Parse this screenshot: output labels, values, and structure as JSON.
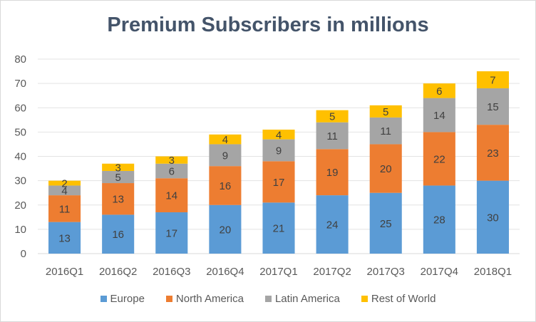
{
  "chart_data": {
    "type": "bar",
    "stacked": true,
    "title": "Premium Subscribers in millions",
    "xlabel": "",
    "ylabel": "",
    "ylim": [
      0,
      80
    ],
    "yticks": [
      0,
      10,
      20,
      30,
      40,
      50,
      60,
      70,
      80
    ],
    "grid": true,
    "legend_position": "bottom",
    "categories": [
      "2016Q1",
      "2016Q2",
      "2016Q3",
      "2016Q4",
      "2017Q1",
      "2017Q2",
      "2017Q3",
      "2017Q4",
      "2018Q1"
    ],
    "series": [
      {
        "name": "Europe",
        "color": "#5b9bd5",
        "values": [
          13,
          16,
          17,
          20,
          21,
          24,
          25,
          28,
          30
        ]
      },
      {
        "name": "North America",
        "color": "#ed7d31",
        "values": [
          11,
          13,
          14,
          16,
          17,
          19,
          20,
          22,
          23
        ]
      },
      {
        "name": "Latin America",
        "color": "#a5a5a5",
        "values": [
          4,
          5,
          6,
          9,
          9,
          11,
          11,
          14,
          15
        ]
      },
      {
        "name": "Rest of World",
        "color": "#ffc000",
        "values": [
          2,
          3,
          3,
          4,
          4,
          5,
          5,
          6,
          7
        ]
      }
    ]
  }
}
